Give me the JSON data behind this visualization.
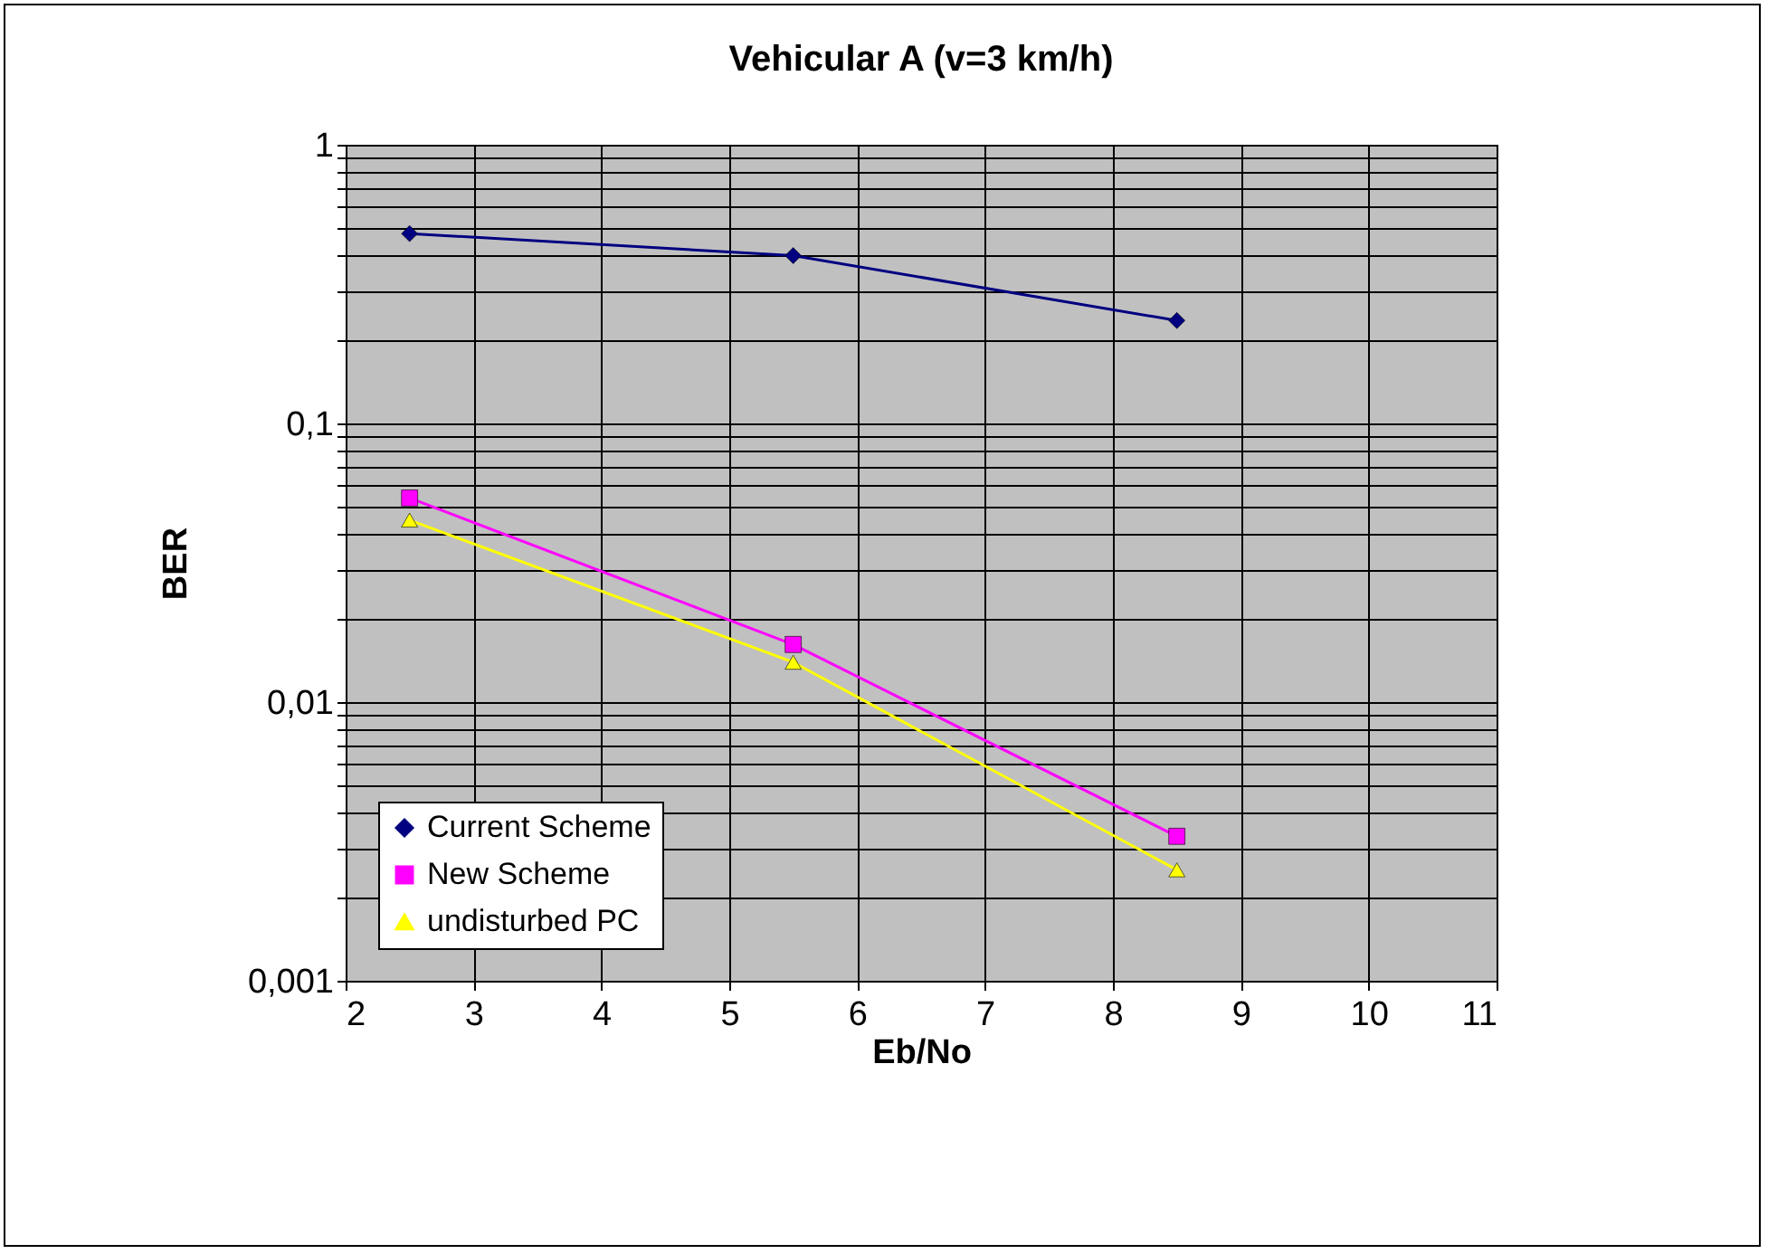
{
  "chart_data": {
    "type": "line",
    "title": "Vehicular A (v=3 km/h)",
    "xlabel": "Eb/No",
    "ylabel": "BER",
    "log": "y",
    "grid": true,
    "legend": "bottom left",
    "line_style": "solid",
    "xlim": [
      2,
      11
    ],
    "xticks": [
      2,
      3,
      4,
      5,
      6,
      7,
      8,
      9,
      10,
      11
    ],
    "ylim": [
      0.001,
      1
    ],
    "yticks": [
      {
        "value": 0.001,
        "label": "0,001"
      },
      {
        "value": 0.01,
        "label": "0,01"
      },
      {
        "value": 0.1,
        "label": "0,1"
      },
      {
        "value": 1,
        "label": "1"
      }
    ],
    "x": [
      2.5,
      5.5,
      8.5
    ],
    "series": [
      {
        "name": "Current Scheme",
        "color": "#000080",
        "marker": "diamond",
        "values": [
          0.48,
          0.4,
          0.234
        ]
      },
      {
        "name": "New Scheme",
        "color": "#ff00ff",
        "marker": "square",
        "values": [
          0.054,
          0.0161,
          0.0033
        ]
      },
      {
        "name": "undisturbed PC",
        "color": "#ffff00",
        "marker": "triangle",
        "values": [
          0.045,
          0.0139,
          0.0025
        ]
      }
    ]
  }
}
